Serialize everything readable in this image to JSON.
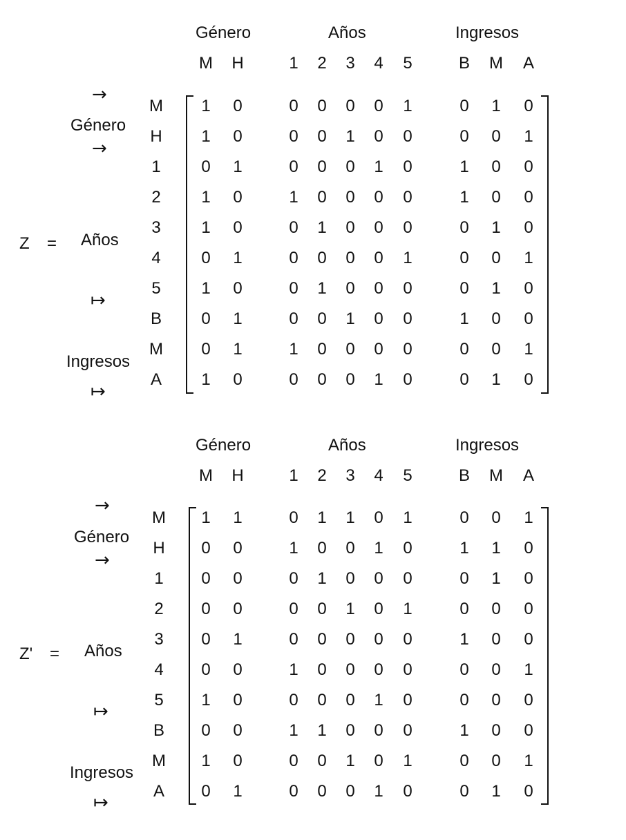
{
  "matrices": [
    {
      "name": "Z",
      "equals": "=",
      "col_groups": [
        "Género",
        "Años",
        "Ingresos"
      ],
      "col_labels": [
        "M",
        "H",
        "1",
        "2",
        "3",
        "4",
        "5",
        "B",
        "M",
        "A"
      ],
      "row_labels": [
        "M",
        "H",
        "1",
        "2",
        "3",
        "4",
        "5",
        "B",
        "M",
        "A"
      ],
      "row_groups": [
        "Género",
        "Años",
        "Ingresos"
      ],
      "arrows": [
        "→",
        "→",
        "↦",
        "↦"
      ],
      "rows": [
        [
          "1",
          "0",
          "0",
          "0",
          "0",
          "0",
          "1",
          "0",
          "1",
          "0"
        ],
        [
          "1",
          "0",
          "0",
          "0",
          "1",
          "0",
          "0",
          "0",
          "0",
          "1"
        ],
        [
          "0",
          "1",
          "0",
          "0",
          "0",
          "1",
          "0",
          "1",
          "0",
          "0"
        ],
        [
          "1",
          "0",
          "1",
          "0",
          "0",
          "0",
          "0",
          "1",
          "0",
          "0"
        ],
        [
          "1",
          "0",
          "0",
          "1",
          "0",
          "0",
          "0",
          "0",
          "1",
          "0"
        ],
        [
          "0",
          "1",
          "0",
          "0",
          "0",
          "0",
          "1",
          "0",
          "0",
          "1"
        ],
        [
          "1",
          "0",
          "0",
          "1",
          "0",
          "0",
          "0",
          "0",
          "1",
          "0"
        ],
        [
          "0",
          "1",
          "0",
          "0",
          "1",
          "0",
          "0",
          "1",
          "0",
          "0"
        ],
        [
          "0",
          "1",
          "1",
          "0",
          "0",
          "0",
          "0",
          "0",
          "0",
          "1"
        ],
        [
          "1",
          "0",
          "0",
          "0",
          "0",
          "1",
          "0",
          "0",
          "1",
          "0"
        ]
      ]
    },
    {
      "name": "Z'",
      "equals": "=",
      "col_groups": [
        "Género",
        "Años",
        "Ingresos"
      ],
      "col_labels": [
        "M",
        "H",
        "1",
        "2",
        "3",
        "4",
        "5",
        "B",
        "M",
        "A"
      ],
      "row_labels": [
        "M",
        "H",
        "1",
        "2",
        "3",
        "4",
        "5",
        "B",
        "M",
        "A"
      ],
      "row_groups": [
        "Género",
        "Años",
        "Ingresos"
      ],
      "arrows": [
        "→",
        "→",
        "↦",
        "↦"
      ],
      "rows": [
        [
          "1",
          "1",
          "0",
          "1",
          "1",
          "0",
          "1",
          "0",
          "0",
          "1"
        ],
        [
          "0",
          "0",
          "1",
          "0",
          "0",
          "1",
          "0",
          "1",
          "1",
          "0"
        ],
        [
          "0",
          "0",
          "0",
          "1",
          "0",
          "0",
          "0",
          "0",
          "1",
          "0"
        ],
        [
          "0",
          "0",
          "0",
          "0",
          "1",
          "0",
          "1",
          "0",
          "0",
          "0"
        ],
        [
          "0",
          "1",
          "0",
          "0",
          "0",
          "0",
          "0",
          "1",
          "0",
          "0"
        ],
        [
          "0",
          "0",
          "1",
          "0",
          "0",
          "0",
          "0",
          "0",
          "0",
          "1"
        ],
        [
          "1",
          "0",
          "0",
          "0",
          "0",
          "1",
          "0",
          "0",
          "0",
          "0"
        ],
        [
          "0",
          "0",
          "1",
          "1",
          "0",
          "0",
          "0",
          "1",
          "0",
          "0"
        ],
        [
          "1",
          "0",
          "0",
          "0",
          "1",
          "0",
          "1",
          "0",
          "0",
          "1"
        ],
        [
          "0",
          "1",
          "0",
          "0",
          "0",
          "1",
          "0",
          "0",
          "1",
          "0"
        ]
      ]
    }
  ]
}
